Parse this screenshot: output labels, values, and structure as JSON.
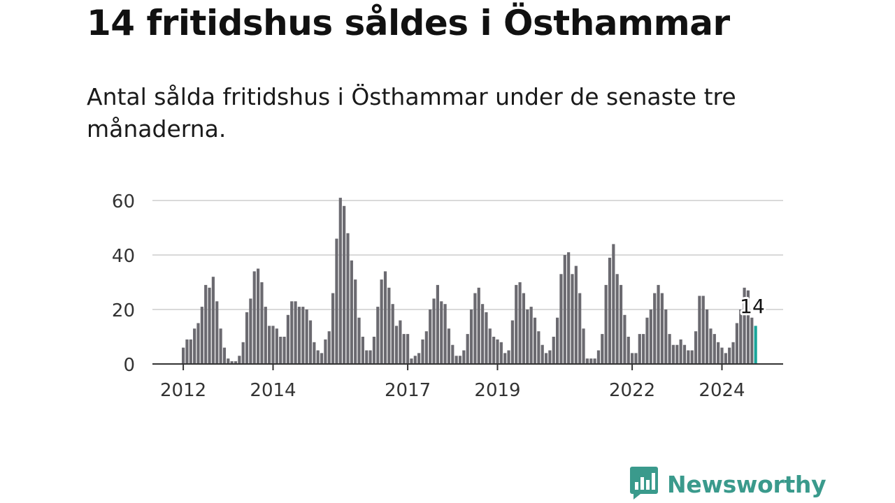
{
  "header": {
    "title": "14 fritidshus såldes i Östhammar",
    "subtitle": "Antal sålda fritidshus i Östhammar under de senaste tre månaderna."
  },
  "brand": {
    "name": "Newsworthy",
    "icon": "newsworthy-logo-icon",
    "color": "#3a9a8c"
  },
  "colors": {
    "bar": "#6b6a70",
    "highlight": "#1aa59a",
    "grid": "#d9d9d9",
    "axis": "#333333"
  },
  "chart_data": {
    "type": "bar",
    "title": "14 fritidshus såldes i Östhammar",
    "subtitle": "Antal sålda fritidshus i Östhammar under de senaste tre månaderna.",
    "xlabel": "",
    "ylabel": "",
    "ylim": [
      0,
      60
    ],
    "yticks": [
      0,
      20,
      40,
      60
    ],
    "grid": true,
    "start": "2012-01",
    "xtick_labels": [
      {
        "label": "2012",
        "index": 0
      },
      {
        "label": "2014",
        "index": 24
      },
      {
        "label": "2017",
        "index": 60
      },
      {
        "label": "2019",
        "index": 84
      },
      {
        "label": "2022",
        "index": 120
      },
      {
        "label": "2024",
        "index": 144
      }
    ],
    "highlight_label": "14",
    "highlight_index": 153,
    "values": [
      6,
      9,
      9,
      13,
      15,
      21,
      29,
      28,
      32,
      23,
      13,
      6,
      2,
      1,
      1,
      3,
      8,
      19,
      24,
      34,
      35,
      30,
      21,
      14,
      14,
      13,
      10,
      10,
      18,
      23,
      23,
      21,
      21,
      20,
      16,
      8,
      5,
      4,
      9,
      12,
      26,
      46,
      61,
      58,
      48,
      38,
      31,
      17,
      10,
      5,
      5,
      10,
      21,
      31,
      34,
      28,
      22,
      14,
      16,
      11,
      11,
      2,
      3,
      4,
      9,
      12,
      20,
      24,
      29,
      23,
      22,
      13,
      7,
      3,
      3,
      5,
      11,
      20,
      26,
      28,
      22,
      19,
      13,
      10,
      9,
      8,
      4,
      5,
      16,
      29,
      30,
      26,
      20,
      21,
      17,
      12,
      7,
      4,
      5,
      10,
      17,
      33,
      40,
      41,
      33,
      36,
      26,
      13,
      2,
      2,
      2,
      5,
      11,
      29,
      39,
      44,
      33,
      29,
      18,
      10,
      4,
      4,
      11,
      11,
      17,
      20,
      26,
      29,
      26,
      20,
      11,
      7,
      7,
      9,
      7,
      5,
      5,
      12,
      25,
      25,
      20,
      13,
      11,
      8,
      6,
      4,
      6,
      8,
      15,
      20,
      28,
      27,
      17,
      14
    ]
  }
}
